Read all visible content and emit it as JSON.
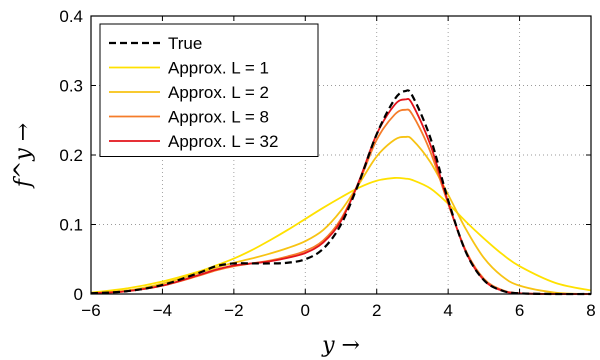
{
  "chart_data": {
    "type": "line",
    "xlabel": "y →",
    "ylabel": "f^y →",
    "xlim": [
      -6,
      8
    ],
    "ylim": [
      0,
      0.4
    ],
    "xticks": [
      -6,
      -4,
      -2,
      0,
      2,
      4,
      6,
      8
    ],
    "yticks": [
      0,
      0.1,
      0.2,
      0.3,
      0.4
    ],
    "grid": true,
    "legend_position": "top-left",
    "x": [
      -6,
      -5,
      -4,
      -3,
      -2.5,
      -2,
      -1.5,
      -1,
      -0.5,
      0,
      0.5,
      1,
      1.5,
      2,
      2.5,
      2.8,
      3,
      3.5,
      4,
      4.5,
      5,
      5.5,
      6,
      7,
      8
    ],
    "series": [
      {
        "name": "True",
        "color": "#000000",
        "dash": true,
        "values": [
          0.001,
          0.004,
          0.013,
          0.03,
          0.04,
          0.044,
          0.044,
          0.044,
          0.045,
          0.05,
          0.065,
          0.1,
          0.16,
          0.23,
          0.28,
          0.292,
          0.285,
          0.225,
          0.135,
          0.06,
          0.02,
          0.005,
          0.001,
          0.0,
          0.0
        ]
      },
      {
        "name": "Approx. L = 1",
        "color": "#ffe100",
        "values": [
          0.002,
          0.008,
          0.018,
          0.032,
          0.041,
          0.051,
          0.063,
          0.077,
          0.092,
          0.108,
          0.124,
          0.139,
          0.153,
          0.163,
          0.167,
          0.166,
          0.164,
          0.152,
          0.13,
          0.104,
          0.08,
          0.058,
          0.04,
          0.016,
          0.005
        ]
      },
      {
        "name": "Approx. L = 2",
        "color": "#f7c313",
        "values": [
          0.001,
          0.005,
          0.015,
          0.03,
          0.038,
          0.045,
          0.051,
          0.058,
          0.066,
          0.076,
          0.092,
          0.12,
          0.158,
          0.198,
          0.222,
          0.226,
          0.222,
          0.19,
          0.143,
          0.093,
          0.052,
          0.026,
          0.012,
          0.002,
          0.0
        ]
      },
      {
        "name": "Approx. L = 8",
        "color": "#f57c2a",
        "values": [
          0.001,
          0.004,
          0.012,
          0.026,
          0.034,
          0.04,
          0.044,
          0.048,
          0.054,
          0.062,
          0.077,
          0.108,
          0.16,
          0.222,
          0.258,
          0.265,
          0.258,
          0.205,
          0.13,
          0.062,
          0.022,
          0.006,
          0.001,
          0.0,
          0.0
        ]
      },
      {
        "name": "Approx. L = 32",
        "color": "#e3131a",
        "values": [
          0.001,
          0.004,
          0.012,
          0.027,
          0.035,
          0.041,
          0.044,
          0.047,
          0.052,
          0.059,
          0.074,
          0.105,
          0.162,
          0.23,
          0.272,
          0.28,
          0.273,
          0.215,
          0.132,
          0.06,
          0.02,
          0.005,
          0.001,
          0.0,
          0.0
        ]
      }
    ]
  }
}
